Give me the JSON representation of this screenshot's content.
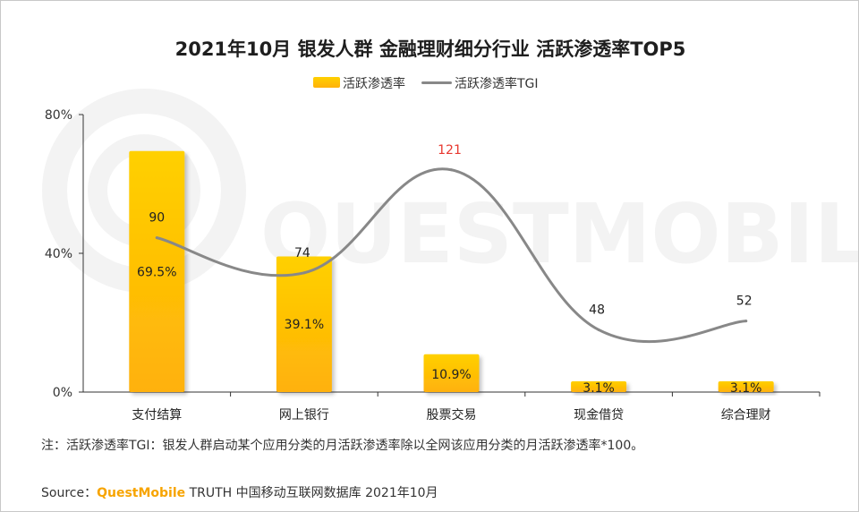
{
  "title": "2021年10月 银发人群 金融理财细分行业 活跃渗透率TOP5",
  "legend": {
    "bar_label": "活跃渗透率",
    "line_label": "活跃渗透率TGI"
  },
  "watermark": "QUESTMOBILE",
  "note": "注：活跃渗透率TGI：银发人群启动某个应用分类的月活跃渗透率除以全网该应用分类的月活跃渗透率*100。",
  "source": {
    "prefix": "Source：",
    "brand": "QuestMobile",
    "rest": " TRUTH 中国移动互联网数据库 2021年10月"
  },
  "colors": {
    "bar_top": "#ffd000",
    "bar_bottom": "#ffb10a",
    "line": "#888888",
    "highlight_label": "#e8382f",
    "axis": "#333333",
    "watermark": "#f3f3f3"
  },
  "chart_data": {
    "type": "bar",
    "title": "2021年10月 银发人群 金融理财细分行业 活跃渗透率TOP5",
    "categories": [
      "支付结算",
      "网上银行",
      "股票交易",
      "现金借贷",
      "综合理财"
    ],
    "ylim": [
      0,
      80
    ],
    "yticks": [
      0,
      40,
      80
    ],
    "ytick_labels": [
      "0%",
      "40%",
      "80%"
    ],
    "series": [
      {
        "name": "活跃渗透率",
        "type": "bar",
        "axis": "left",
        "values": [
          69.5,
          39.1,
          10.9,
          3.1,
          3.1
        ],
        "labels": [
          "69.5%",
          "39.1%",
          "10.9%",
          "3.1%",
          "3.1%"
        ]
      },
      {
        "name": "活跃渗透率TGI",
        "type": "line",
        "axis": "secondary-hidden",
        "values": [
          90,
          74,
          121,
          48,
          52
        ],
        "labels": [
          "90",
          "74",
          "121",
          "48",
          "52"
        ],
        "highlight_index": 2
      }
    ]
  }
}
